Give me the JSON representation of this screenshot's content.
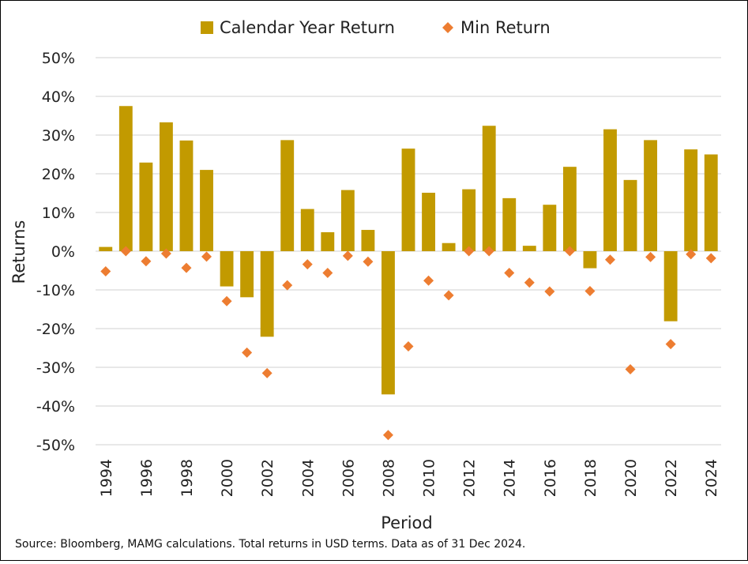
{
  "chart_data": {
    "type": "bar",
    "title": "",
    "xlabel": "Period",
    "ylabel": "Returns",
    "ylim": [
      -50,
      50
    ],
    "y_ticks": [
      50,
      40,
      30,
      20,
      10,
      0,
      -10,
      -20,
      -30,
      -40,
      -50
    ],
    "y_tick_labels": [
      "50%",
      "40%",
      "30%",
      "20%",
      "10%",
      "0%",
      "-10%",
      "-20%",
      "-30%",
      "-40%",
      "-50%"
    ],
    "x_tick_labels": [
      "1994",
      "1996",
      "1998",
      "2000",
      "2002",
      "2004",
      "2006",
      "2008",
      "2010",
      "2012",
      "2014",
      "2016",
      "2018",
      "2020",
      "2022",
      "2024"
    ],
    "grid": true,
    "legend_position": "top",
    "categories": [
      "1994",
      "1995",
      "1996",
      "1997",
      "1998",
      "1999",
      "2000",
      "2001",
      "2002",
      "2003",
      "2004",
      "2005",
      "2006",
      "2007",
      "2008",
      "2009",
      "2010",
      "2011",
      "2012",
      "2013",
      "2014",
      "2015",
      "2016",
      "2017",
      "2018",
      "2019",
      "2020",
      "2021",
      "2022",
      "2023",
      "2024"
    ],
    "series": [
      {
        "name": "Calendar Year Return",
        "kind": "bar",
        "color": "#C29A00",
        "values": [
          1.1,
          37.5,
          22.9,
          33.3,
          28.6,
          21.0,
          -9.1,
          -11.9,
          -22.1,
          28.7,
          10.9,
          4.9,
          15.8,
          5.5,
          -37.0,
          26.5,
          15.1,
          2.1,
          16.0,
          32.4,
          13.7,
          1.4,
          12.0,
          21.8,
          -4.4,
          31.5,
          18.4,
          28.7,
          -18.1,
          26.3,
          25.0
        ]
      },
      {
        "name": "Min Return",
        "kind": "scatter",
        "color": "#ED7D31",
        "values": [
          -5.2,
          0.0,
          -2.6,
          -0.6,
          -4.3,
          -1.4,
          -12.9,
          -26.2,
          -31.5,
          -8.8,
          -3.4,
          -5.6,
          -1.2,
          -2.7,
          -47.5,
          -24.6,
          -7.6,
          -11.4,
          0.0,
          0.0,
          -5.6,
          -8.1,
          -10.4,
          0.0,
          -10.3,
          -2.2,
          -30.5,
          -1.5,
          -24.0,
          -0.8,
          -1.8
        ]
      }
    ]
  },
  "footer": {
    "source": "Source: Bloomberg, MAMG calculations. Total returns in USD terms. Data as of 31 Dec 2024."
  }
}
